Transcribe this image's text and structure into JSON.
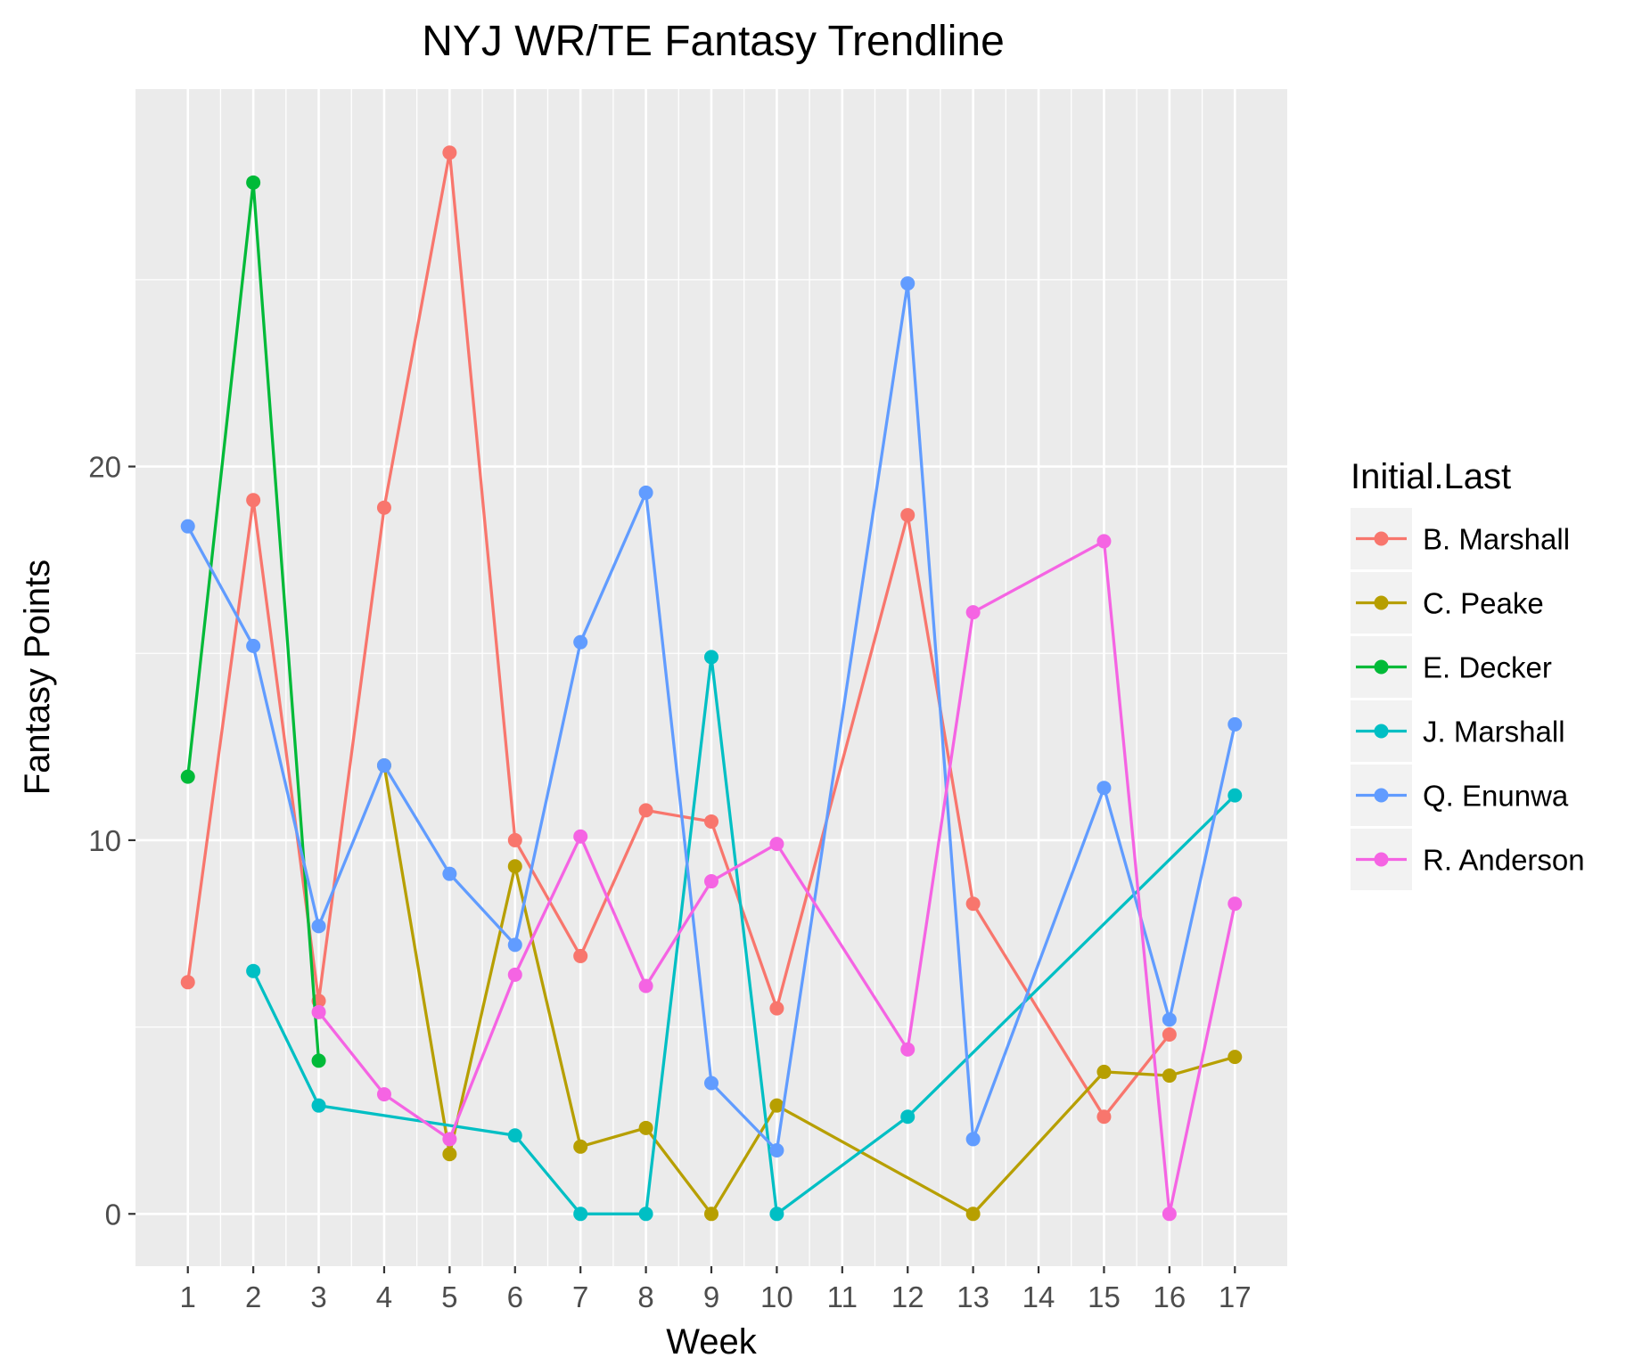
{
  "chart_data": {
    "type": "line",
    "title": "NYJ WR/TE Fantasy Trendline",
    "xlabel": "Week",
    "ylabel": "Fantasy Points",
    "x_ticks": [
      1,
      2,
      3,
      4,
      5,
      6,
      7,
      8,
      9,
      10,
      11,
      12,
      13,
      14,
      15,
      16,
      17
    ],
    "x_range": [
      0.2,
      17.8
    ],
    "y_ticks": [
      0,
      10,
      20
    ],
    "y_range": [
      -1.4,
      30.1
    ],
    "grid": true,
    "legend": {
      "title": "Initial.Last",
      "placement": "right"
    },
    "series": [
      {
        "name": "B. Marshall",
        "color": "#F8766D",
        "points": [
          [
            1,
            6.2
          ],
          [
            2,
            19.1
          ],
          [
            3,
            5.7
          ],
          [
            4,
            18.9
          ],
          [
            5,
            28.4
          ],
          [
            6,
            10.0
          ],
          [
            7,
            6.9
          ],
          [
            8,
            10.8
          ],
          [
            9,
            10.5
          ],
          [
            10,
            5.5
          ],
          [
            12,
            18.7
          ],
          [
            13,
            8.3
          ],
          [
            15,
            2.6
          ],
          [
            16,
            4.8
          ]
        ]
      },
      {
        "name": "C. Peake",
        "color": "#B79F00",
        "points": [
          [
            4,
            12.0
          ],
          [
            5,
            1.6
          ],
          [
            6,
            9.3
          ],
          [
            7,
            1.8
          ],
          [
            8,
            2.3
          ],
          [
            9,
            0.0
          ],
          [
            10,
            2.9
          ],
          [
            13,
            0.0
          ],
          [
            15,
            3.8
          ],
          [
            16,
            3.7
          ],
          [
            17,
            4.2
          ]
        ]
      },
      {
        "name": "E. Decker",
        "color": "#00BA38",
        "points": [
          [
            1,
            11.7
          ],
          [
            2,
            27.6
          ],
          [
            3,
            4.1
          ]
        ]
      },
      {
        "name": "J. Marshall",
        "color": "#00BFC4",
        "points": [
          [
            2,
            6.5
          ],
          [
            3,
            2.9
          ],
          [
            6,
            2.1
          ],
          [
            7,
            0.0
          ],
          [
            8,
            0.0
          ],
          [
            9,
            14.9
          ],
          [
            10,
            0.0
          ],
          [
            12,
            2.6
          ],
          [
            17,
            11.2
          ]
        ]
      },
      {
        "name": "Q. Enunwa",
        "color": "#619CFF",
        "points": [
          [
            1,
            18.4
          ],
          [
            2,
            15.2
          ],
          [
            3,
            7.7
          ],
          [
            4,
            12.0
          ],
          [
            5,
            9.1
          ],
          [
            6,
            7.2
          ],
          [
            7,
            15.3
          ],
          [
            8,
            19.3
          ],
          [
            9,
            3.5
          ],
          [
            10,
            1.7
          ],
          [
            12,
            24.9
          ],
          [
            13,
            2.0
          ],
          [
            15,
            11.4
          ],
          [
            16,
            5.2
          ],
          [
            17,
            13.1
          ]
        ]
      },
      {
        "name": "R. Anderson",
        "color": "#F564E3",
        "points": [
          [
            3,
            5.4
          ],
          [
            4,
            3.2
          ],
          [
            5,
            2.0
          ],
          [
            6,
            6.4
          ],
          [
            7,
            10.1
          ],
          [
            8,
            6.1
          ],
          [
            9,
            8.9
          ],
          [
            10,
            9.9
          ],
          [
            12,
            4.4
          ],
          [
            13,
            16.1
          ],
          [
            15,
            18.0
          ],
          [
            16,
            0.0
          ],
          [
            17,
            8.3
          ]
        ]
      }
    ]
  }
}
